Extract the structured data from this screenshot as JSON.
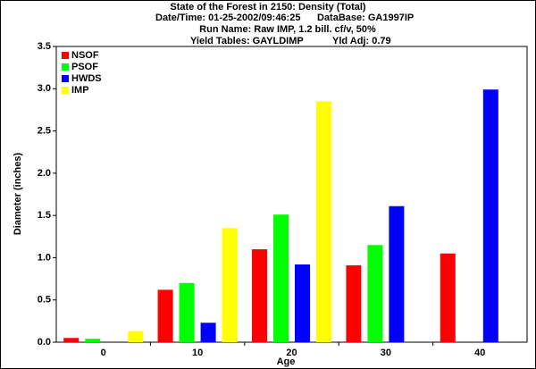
{
  "chart_data": {
    "type": "bar",
    "title": "State of the Forest in 2150: Density (Total)",
    "subtitle_lines": [
      [
        "Date/Time: 01-25-2002/09:46:25",
        "DataBase: GA1997IP"
      ],
      [
        "Run Name: Raw IMP, 1.2 bill. cf/v, 50%"
      ],
      [
        "Yield Tables: GAYLDIMP",
        "Yld Adj: 0.79"
      ]
    ],
    "xlabel": "Age",
    "ylabel": "Diameter (inches)",
    "categories": [
      "0",
      "10",
      "20",
      "30",
      "40"
    ],
    "series": [
      {
        "name": "NSOF",
        "color": "#ff0000",
        "values": [
          0.05,
          0.62,
          1.1,
          0.91,
          1.05
        ]
      },
      {
        "name": "PSOF",
        "color": "#00ff00",
        "values": [
          0.04,
          0.7,
          1.51,
          1.15,
          0
        ]
      },
      {
        "name": "HWDS",
        "color": "#0000ff",
        "values": [
          0,
          0.23,
          0.92,
          1.61,
          2.99
        ]
      },
      {
        "name": "IMP",
        "color": "#ffff00",
        "values": [
          0.13,
          1.35,
          2.85,
          0,
          0
        ]
      }
    ],
    "ylim": [
      0,
      3.5
    ],
    "yticks": [
      {
        "value": 0,
        "label": "0.0"
      },
      {
        "value": 0.5,
        "label": "0.5"
      },
      {
        "value": 1,
        "label": "1.0"
      },
      {
        "value": 1.5,
        "label": "1.5"
      },
      {
        "value": 2,
        "label": "2.0"
      },
      {
        "value": 2.5,
        "label": "2.5"
      },
      {
        "value": 3,
        "label": "3.0"
      },
      {
        "value": 3.5,
        "label": "3.5"
      }
    ],
    "grid": false,
    "legend": "upper-left"
  }
}
